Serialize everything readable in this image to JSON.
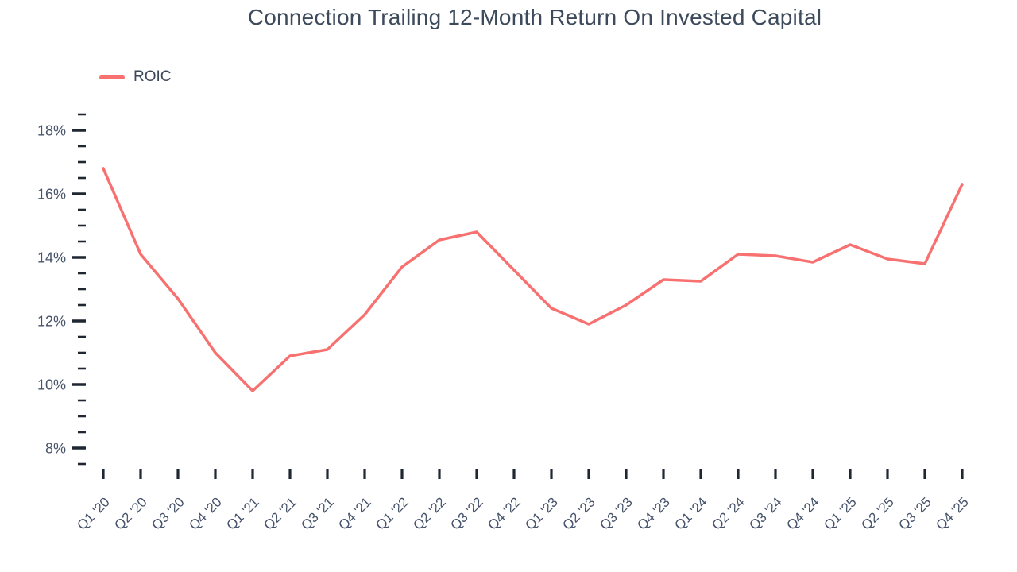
{
  "title": "Connection Trailing 12-Month Return On Invested Capital",
  "legend": {
    "label": "ROIC",
    "swatch_color": "#f87171"
  },
  "colors": {
    "line": "#f87171",
    "title_text": "#3d4a5c",
    "axis_label_text": "#46536b",
    "tick_mark": "#1f2733",
    "background": "#ffffff"
  },
  "chart_data": {
    "type": "line",
    "title": "Connection Trailing 12-Month Return On Invested Capital",
    "categories": [
      "Q1 '20",
      "Q2 '20",
      "Q3 '20",
      "Q4 '20",
      "Q1 '21",
      "Q2 '21",
      "Q3 '21",
      "Q4 '21",
      "Q1 '22",
      "Q2 '22",
      "Q3 '22",
      "Q4 '22",
      "Q1 '23",
      "Q2 '23",
      "Q3 '23",
      "Q4 '23",
      "Q1 '24",
      "Q2 '24",
      "Q3 '24",
      "Q4 '24",
      "Q1 '25",
      "Q2 '25",
      "Q3 '25",
      "Q4 '25"
    ],
    "series": [
      {
        "name": "ROIC",
        "color": "#f87171",
        "values": [
          16.8,
          14.1,
          12.7,
          11.0,
          9.8,
          10.9,
          11.1,
          12.2,
          13.7,
          14.55,
          14.8,
          13.6,
          12.4,
          11.9,
          12.5,
          13.3,
          13.25,
          14.1,
          14.05,
          13.85,
          14.4,
          13.95,
          13.8,
          16.3
        ]
      }
    ],
    "xlabel": "",
    "ylabel": "",
    "y_axis": {
      "min": 7.5,
      "max": 18.5,
      "minor_step": 0.5,
      "major_step": 2,
      "major_ticks": [
        8,
        10,
        12,
        14,
        16,
        18
      ],
      "major_tick_labels": [
        "8%",
        "10%",
        "12%",
        "14%",
        "16%",
        "18%"
      ],
      "label_suffix": "%"
    },
    "grid": false,
    "legend_position": "top-left",
    "legend_entries": [
      "ROIC"
    ]
  }
}
